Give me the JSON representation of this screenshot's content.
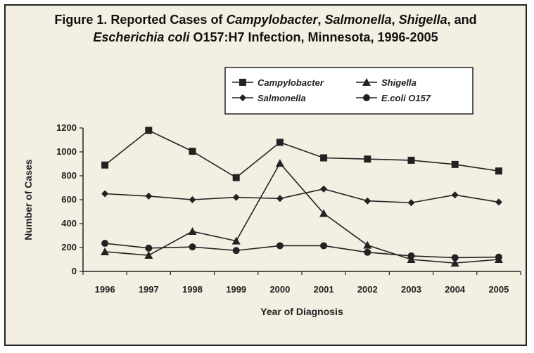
{
  "figure": {
    "title_line1_parts": [
      {
        "text": "Figure 1.   Reported Cases of ",
        "italic": false
      },
      {
        "text": "Campylobacter",
        "italic": true
      },
      {
        "text": ", ",
        "italic": false
      },
      {
        "text": "Salmonella",
        "italic": true
      },
      {
        "text": ", ",
        "italic": false
      },
      {
        "text": "Shigella",
        "italic": true
      },
      {
        "text": ", and",
        "italic": false
      }
    ],
    "title_line2_parts": [
      {
        "text": "Escherichia coli",
        "italic": true
      },
      {
        "text": " O157:H7 Infection, Minnesota, 1996-2005",
        "italic": false
      }
    ]
  },
  "chart_data": {
    "type": "line",
    "title": "Figure 1. Reported Cases of Campylobacter, Salmonella, Shigella, and Escherichia coli O157:H7 Infection, Minnesota, 1996-2005",
    "xlabel": "Year of Diagnosis",
    "ylabel": "Number of Cases",
    "x": [
      "1996",
      "1997",
      "1998",
      "1999",
      "2000",
      "2001",
      "2002",
      "2003",
      "2004",
      "2005"
    ],
    "ylim": [
      0,
      1200
    ],
    "yticks": [
      "0",
      "200",
      "400",
      "600",
      "800",
      "1000",
      "1200"
    ],
    "grid": false,
    "legend": "top",
    "series": [
      {
        "name": "Campylobacter",
        "marker": "square",
        "values": [
          890,
          1180,
          1005,
          785,
          1080,
          950,
          940,
          930,
          895,
          840
        ]
      },
      {
        "name": "Salmonella",
        "marker": "diamond",
        "values": [
          650,
          630,
          600,
          620,
          610,
          690,
          590,
          575,
          640,
          580
        ]
      },
      {
        "name": "Shigella",
        "marker": "triangle",
        "values": [
          165,
          135,
          335,
          255,
          905,
          485,
          220,
          100,
          70,
          100
        ]
      },
      {
        "name": "E.coli O157",
        "marker": "circle",
        "values": [
          235,
          195,
          205,
          175,
          215,
          215,
          160,
          130,
          115,
          120
        ]
      }
    ],
    "legend_entries": [
      {
        "label": "Campylobacter",
        "marker": "square"
      },
      {
        "label": "Shigella",
        "marker": "triangle"
      },
      {
        "label": "Salmonella",
        "marker": "diamond"
      },
      {
        "label": "E.coli O157",
        "marker": "circle"
      }
    ],
    "colors": {
      "background": "#f3efe2",
      "ink": "#222222"
    }
  }
}
